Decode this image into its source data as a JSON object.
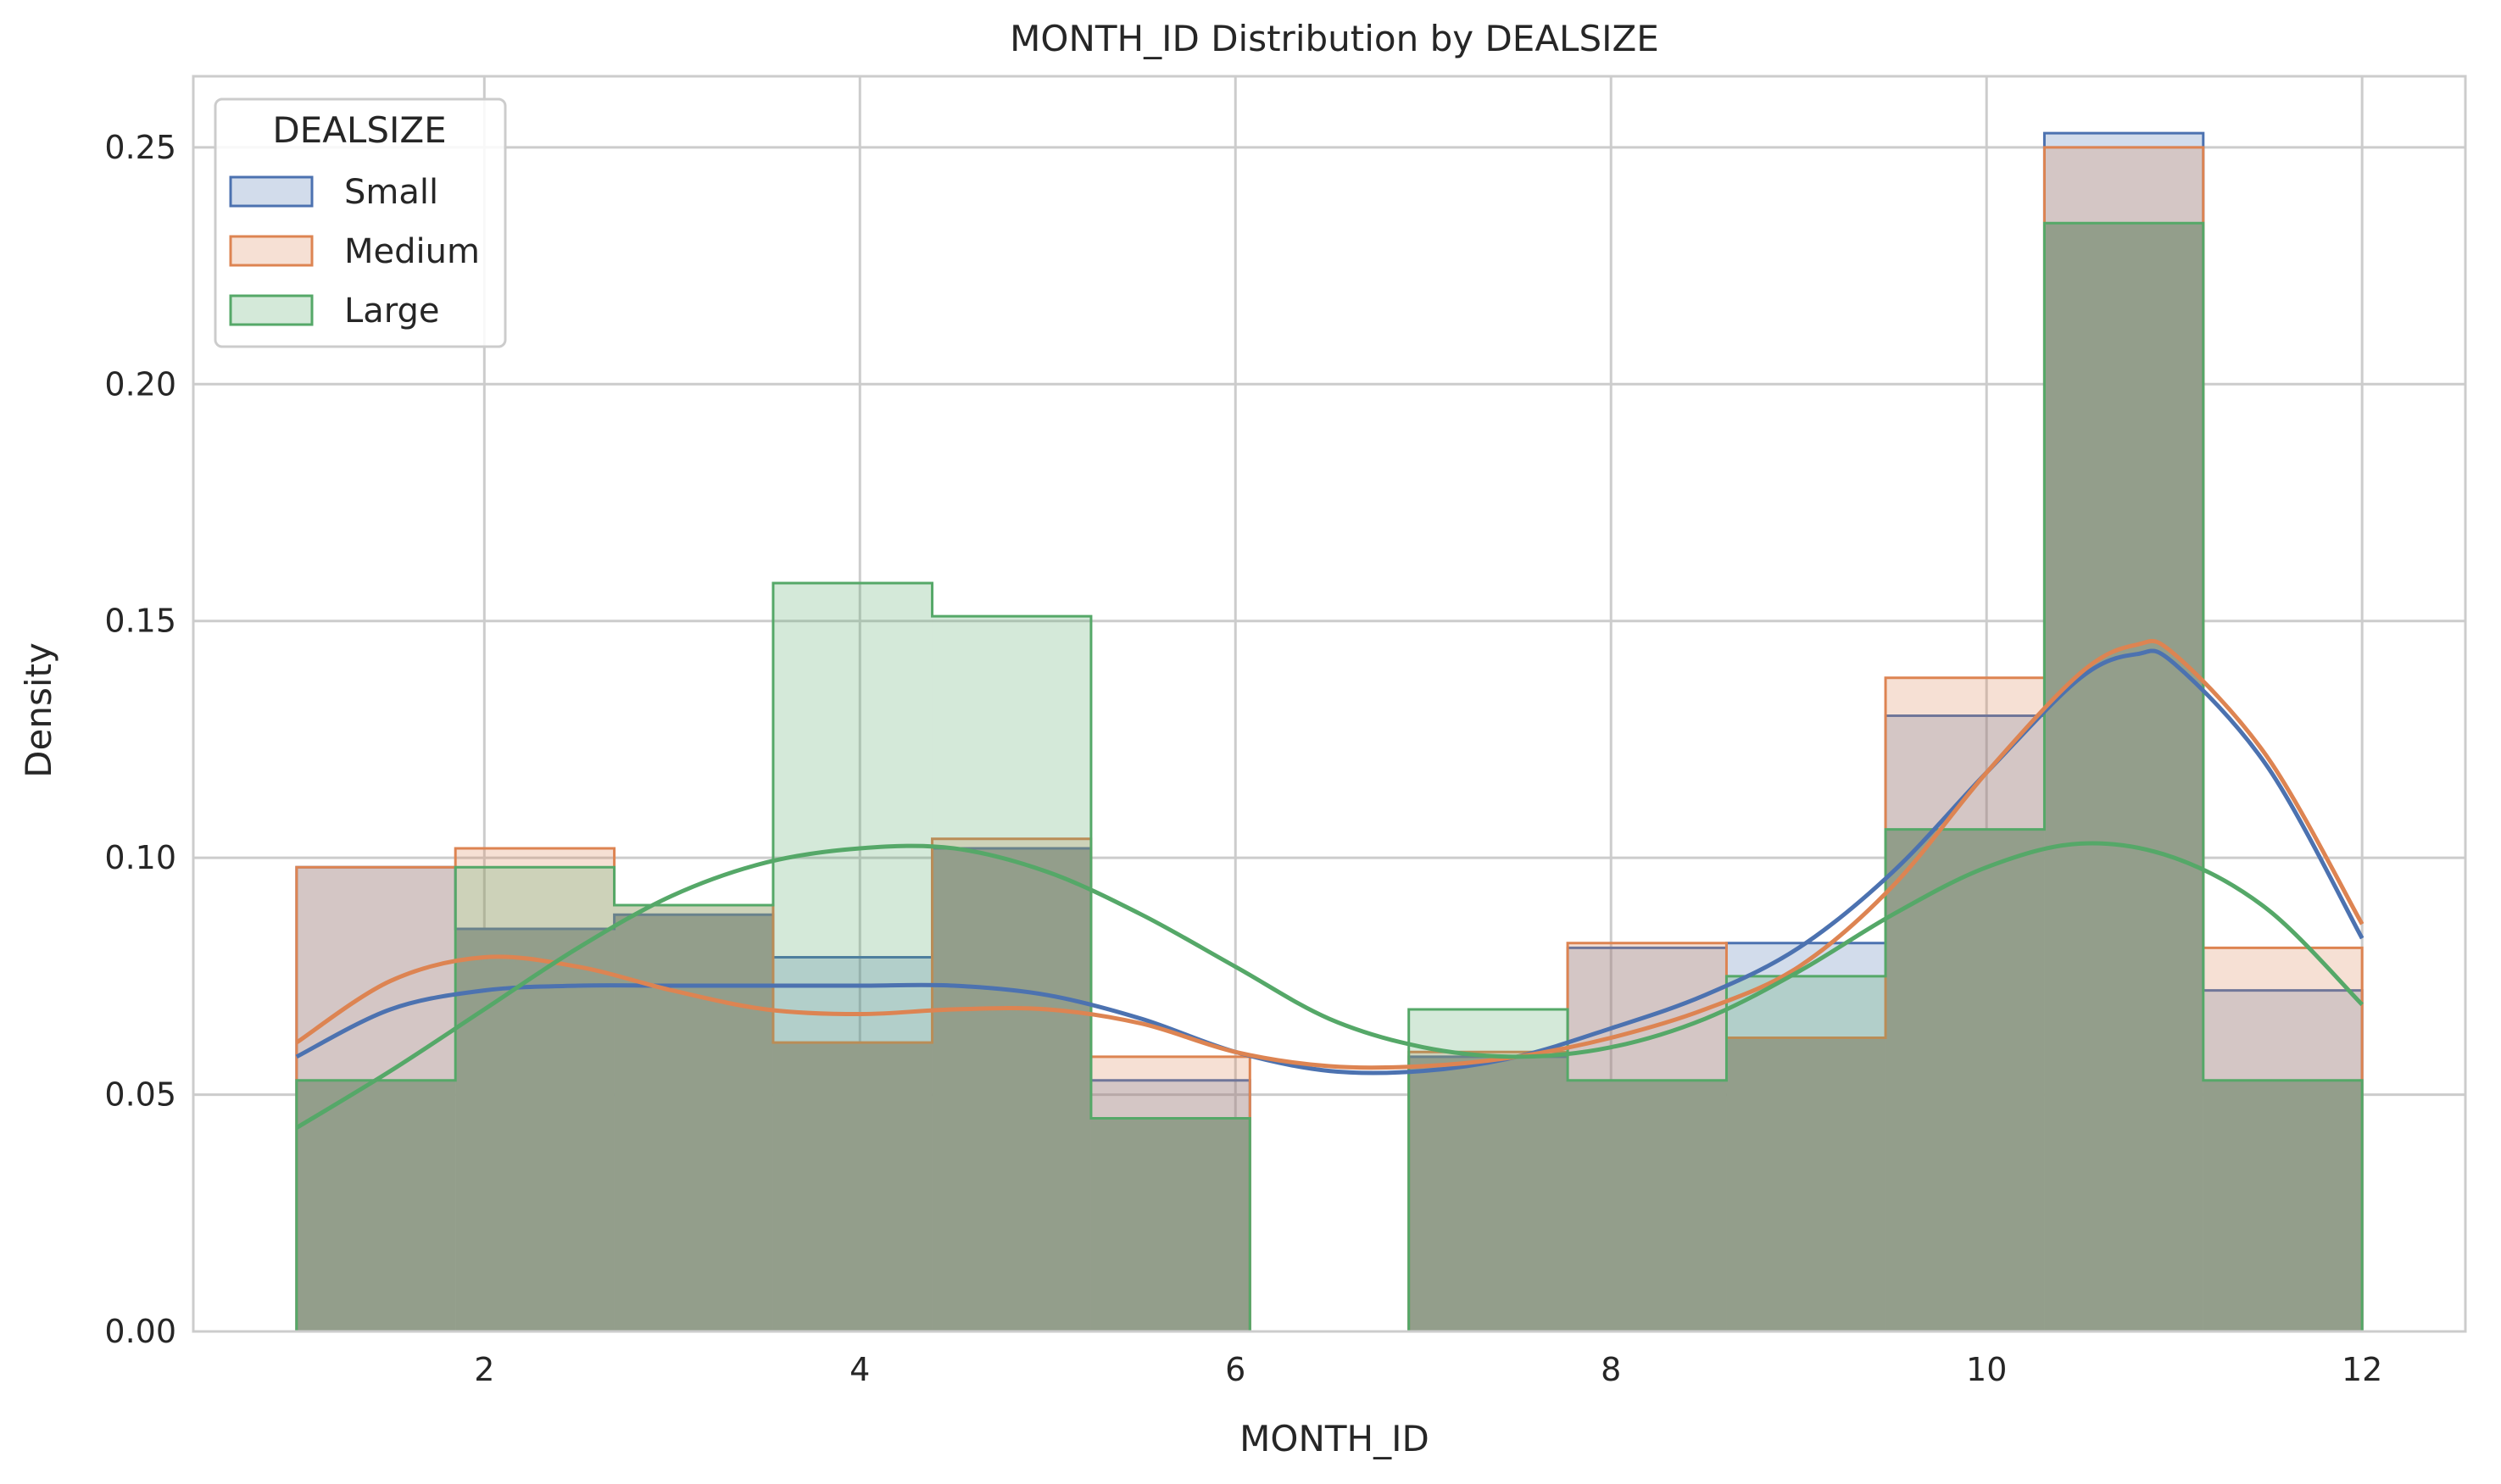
{
  "chart_data": {
    "type": "histogram",
    "title": "MONTH_ID Distribution by DEALSIZE",
    "xlabel": "MONTH_ID",
    "ylabel": "Density",
    "xlim": [
      0.45,
      12.55
    ],
    "ylim": [
      0,
      0.265
    ],
    "xticks": [
      2,
      4,
      6,
      8,
      10,
      12
    ],
    "yticks": [
      0.0,
      0.05,
      0.1,
      0.15,
      0.2,
      0.25
    ],
    "ytick_labels": [
      "0.00",
      "0.05",
      "0.10",
      "0.15",
      "0.20",
      "0.25"
    ],
    "grid": true,
    "element": "step",
    "stat": "density",
    "kde": true,
    "bin_edges": [
      1.0,
      1.846,
      2.692,
      3.538,
      4.385,
      5.231,
      6.077,
      6.923,
      7.769,
      8.615,
      9.462,
      10.308,
      11.154,
      12.0
    ],
    "legend": {
      "title": "DEALSIZE",
      "location": "upper left"
    },
    "series": [
      {
        "name": "Small",
        "color": "#4c72b0",
        "densities": [
          0.098,
          0.085,
          0.088,
          0.079,
          0.102,
          0.053,
          0.0,
          0.058,
          0.081,
          0.082,
          0.13,
          0.253,
          0.072
        ],
        "kde": {
          "x": [
            1.0,
            1.5,
            2.0,
            2.5,
            3.0,
            3.5,
            4.0,
            4.5,
            5.0,
            5.5,
            6.0,
            6.5,
            7.0,
            7.5,
            8.0,
            8.5,
            9.0,
            9.5,
            10.0,
            10.5,
            10.8,
            11.0,
            11.5,
            12.0
          ],
          "y": [
            0.058,
            0.068,
            0.072,
            0.073,
            0.073,
            0.073,
            0.073,
            0.073,
            0.071,
            0.066,
            0.059,
            0.055,
            0.055,
            0.058,
            0.064,
            0.071,
            0.081,
            0.097,
            0.118,
            0.138,
            0.143,
            0.141,
            0.119,
            0.083
          ]
        }
      },
      {
        "name": "Medium",
        "color": "#dd8452",
        "densities": [
          0.098,
          0.102,
          0.09,
          0.061,
          0.104,
          0.058,
          0.0,
          0.059,
          0.082,
          0.062,
          0.138,
          0.25,
          0.081
        ],
        "kde": {
          "x": [
            1.0,
            1.5,
            2.0,
            2.5,
            3.0,
            3.5,
            4.0,
            4.5,
            5.0,
            5.5,
            6.0,
            6.5,
            7.0,
            7.5,
            8.0,
            8.5,
            9.0,
            9.5,
            10.0,
            10.5,
            10.8,
            11.0,
            11.5,
            12.0
          ],
          "y": [
            0.061,
            0.074,
            0.079,
            0.077,
            0.072,
            0.068,
            0.067,
            0.068,
            0.068,
            0.065,
            0.059,
            0.056,
            0.056,
            0.058,
            0.062,
            0.068,
            0.077,
            0.094,
            0.118,
            0.139,
            0.145,
            0.143,
            0.121,
            0.086
          ]
        }
      },
      {
        "name": "Large",
        "color": "#55a868",
        "densities": [
          0.053,
          0.098,
          0.09,
          0.158,
          0.151,
          0.045,
          0.0,
          0.068,
          0.053,
          0.075,
          0.106,
          0.234,
          0.053
        ],
        "kde": {
          "x": [
            1.0,
            1.5,
            2.0,
            2.5,
            3.0,
            3.5,
            4.0,
            4.5,
            5.0,
            5.5,
            6.0,
            6.5,
            7.0,
            7.5,
            8.0,
            8.5,
            9.0,
            9.5,
            10.0,
            10.5,
            11.0,
            11.5,
            12.0
          ],
          "y": [
            0.043,
            0.055,
            0.068,
            0.081,
            0.092,
            0.099,
            0.102,
            0.102,
            0.097,
            0.088,
            0.077,
            0.066,
            0.06,
            0.058,
            0.06,
            0.066,
            0.076,
            0.088,
            0.098,
            0.103,
            0.1,
            0.089,
            0.069
          ]
        }
      }
    ],
    "overlap_color": "#b1b3ae",
    "overlap_label": ""
  }
}
